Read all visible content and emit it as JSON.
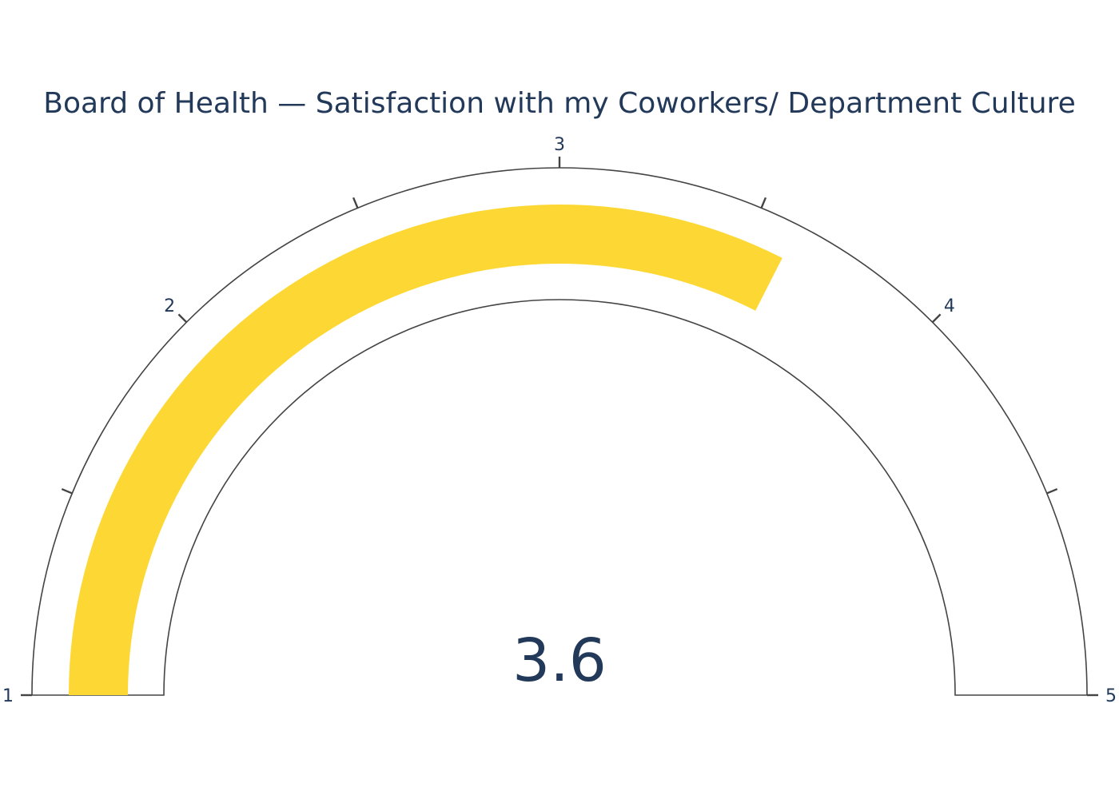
{
  "chart_data": {
    "type": "gauge",
    "title": "Board of Health — Satisfaction with my Coworkers/ Department Culture",
    "value": 3.6,
    "value_label": "3.6",
    "range": [
      1,
      5
    ],
    "major_ticks": [
      1,
      2,
      3,
      4,
      5
    ],
    "major_tick_labels": [
      "1",
      "2",
      "3",
      "4",
      "5"
    ],
    "minor_ticks": [
      1.5,
      2.5,
      3.5,
      4.5
    ],
    "colors": {
      "bar": "#fdd835",
      "axis": "#444444",
      "text": "#22395a",
      "background": "#ffffff"
    }
  }
}
